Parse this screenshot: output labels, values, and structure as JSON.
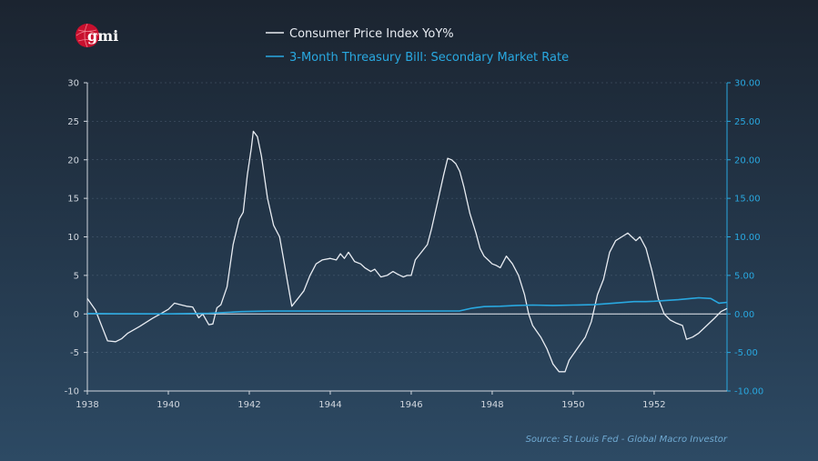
{
  "brand": {
    "logo_text": "gmi"
  },
  "source_note": "Source: St Louis Fed - Global Macro Investor",
  "colors": {
    "cpi": "#e8ecf2",
    "tbill": "#29a8e0",
    "left_axis": "#d0d6de",
    "right_axis": "#29a8e0",
    "logo": "#c8102e"
  },
  "chart_data": {
    "type": "line",
    "xlim": [
      1938,
      1953.8
    ],
    "ylim_left": [
      -10,
      30
    ],
    "ylim_right": [
      -10,
      30
    ],
    "x_ticks": [
      "1938",
      "1940",
      "1942",
      "1944",
      "1946",
      "1948",
      "1950",
      "1952"
    ],
    "y_ticks_left": [
      "30",
      "25",
      "20",
      "15",
      "10",
      "5",
      "0",
      "-5",
      "-10"
    ],
    "y_ticks_right": [
      "30.00",
      "25.00",
      "20.00",
      "15.00",
      "10.00",
      "5.00",
      "0.00",
      "-5.00",
      "-10.00"
    ],
    "grid": true,
    "legend_position": "top-center",
    "series": [
      {
        "name": "Consumer Price Index YoY%",
        "axis": "left",
        "points": [
          [
            1938.0,
            2.0
          ],
          [
            1938.2,
            0.5
          ],
          [
            1938.35,
            -1.5
          ],
          [
            1938.5,
            -3.5
          ],
          [
            1938.7,
            -3.6
          ],
          [
            1938.85,
            -3.2
          ],
          [
            1939.0,
            -2.5
          ],
          [
            1939.3,
            -1.6
          ],
          [
            1939.6,
            -0.6
          ],
          [
            1939.8,
            0.0
          ],
          [
            1940.0,
            0.6
          ],
          [
            1940.15,
            1.4
          ],
          [
            1940.3,
            1.2
          ],
          [
            1940.45,
            1.0
          ],
          [
            1940.6,
            0.9
          ],
          [
            1940.75,
            -0.5
          ],
          [
            1940.85,
            0.0
          ],
          [
            1941.0,
            -1.4
          ],
          [
            1941.1,
            -1.3
          ],
          [
            1941.2,
            0.8
          ],
          [
            1941.3,
            1.2
          ],
          [
            1941.45,
            3.5
          ],
          [
            1941.6,
            9.0
          ],
          [
            1941.75,
            12.3
          ],
          [
            1941.85,
            13.2
          ],
          [
            1941.95,
            18.0
          ],
          [
            1942.05,
            21.5
          ],
          [
            1942.1,
            23.7
          ],
          [
            1942.2,
            23.0
          ],
          [
            1942.3,
            20.5
          ],
          [
            1942.45,
            15.0
          ],
          [
            1942.6,
            11.5
          ],
          [
            1942.75,
            10.0
          ],
          [
            1942.85,
            7.0
          ],
          [
            1942.95,
            4.0
          ],
          [
            1943.05,
            1.0
          ],
          [
            1943.2,
            2.0
          ],
          [
            1943.35,
            3.0
          ],
          [
            1943.5,
            5.0
          ],
          [
            1943.65,
            6.5
          ],
          [
            1943.8,
            7.0
          ],
          [
            1944.0,
            7.2
          ],
          [
            1944.15,
            7.0
          ],
          [
            1944.25,
            7.8
          ],
          [
            1944.35,
            7.2
          ],
          [
            1944.45,
            8.0
          ],
          [
            1944.6,
            6.8
          ],
          [
            1944.75,
            6.5
          ],
          [
            1944.85,
            6.0
          ],
          [
            1945.0,
            5.5
          ],
          [
            1945.1,
            5.8
          ],
          [
            1945.25,
            4.8
          ],
          [
            1945.4,
            5.0
          ],
          [
            1945.55,
            5.5
          ],
          [
            1945.65,
            5.2
          ],
          [
            1945.8,
            4.8
          ],
          [
            1945.9,
            5.0
          ],
          [
            1946.0,
            5.0
          ],
          [
            1946.1,
            7.0
          ],
          [
            1946.25,
            8.0
          ],
          [
            1946.4,
            9.0
          ],
          [
            1946.5,
            11.0
          ],
          [
            1946.65,
            14.5
          ],
          [
            1946.8,
            18.0
          ],
          [
            1946.9,
            20.2
          ],
          [
            1947.0,
            20.0
          ],
          [
            1947.1,
            19.5
          ],
          [
            1947.2,
            18.5
          ],
          [
            1947.3,
            16.5
          ],
          [
            1947.45,
            13.0
          ],
          [
            1947.6,
            10.5
          ],
          [
            1947.7,
            8.5
          ],
          [
            1947.8,
            7.5
          ],
          [
            1947.9,
            7.0
          ],
          [
            1948.0,
            6.5
          ],
          [
            1948.1,
            6.3
          ],
          [
            1948.2,
            6.0
          ],
          [
            1948.35,
            7.5
          ],
          [
            1948.5,
            6.5
          ],
          [
            1948.65,
            5.0
          ],
          [
            1948.8,
            2.5
          ],
          [
            1948.9,
            0.0
          ],
          [
            1949.0,
            -1.5
          ],
          [
            1949.2,
            -3.0
          ],
          [
            1949.35,
            -4.5
          ],
          [
            1949.5,
            -6.5
          ],
          [
            1949.65,
            -7.5
          ],
          [
            1949.8,
            -7.5
          ],
          [
            1949.9,
            -6.0
          ],
          [
            1950.1,
            -4.5
          ],
          [
            1950.3,
            -3.0
          ],
          [
            1950.45,
            -1.0
          ],
          [
            1950.6,
            2.5
          ],
          [
            1950.75,
            4.5
          ],
          [
            1950.9,
            8.0
          ],
          [
            1951.05,
            9.5
          ],
          [
            1951.2,
            10.0
          ],
          [
            1951.35,
            10.5
          ],
          [
            1951.45,
            10.0
          ],
          [
            1951.55,
            9.5
          ],
          [
            1951.65,
            10.0
          ],
          [
            1951.8,
            8.5
          ],
          [
            1951.95,
            5.5
          ],
          [
            1952.1,
            2.0
          ],
          [
            1952.25,
            0.0
          ],
          [
            1952.4,
            -0.8
          ],
          [
            1952.55,
            -1.2
          ],
          [
            1952.7,
            -1.5
          ],
          [
            1952.8,
            -3.3
          ],
          [
            1952.95,
            -3.0
          ],
          [
            1953.1,
            -2.5
          ],
          [
            1953.3,
            -1.5
          ],
          [
            1953.5,
            -0.5
          ],
          [
            1953.65,
            0.3
          ],
          [
            1953.8,
            0.7
          ]
        ]
      },
      {
        "name": "3-Month Threasury Bill: Secondary Market Rate",
        "axis": "right",
        "points": [
          [
            1938.0,
            0.05
          ],
          [
            1939.0,
            0.02
          ],
          [
            1940.0,
            0.01
          ],
          [
            1941.0,
            0.08
          ],
          [
            1941.8,
            0.3
          ],
          [
            1942.5,
            0.37
          ],
          [
            1944.0,
            0.375
          ],
          [
            1946.0,
            0.375
          ],
          [
            1947.2,
            0.4
          ],
          [
            1947.5,
            0.75
          ],
          [
            1947.8,
            0.95
          ],
          [
            1948.2,
            1.0
          ],
          [
            1948.6,
            1.1
          ],
          [
            1949.0,
            1.15
          ],
          [
            1949.5,
            1.1
          ],
          [
            1950.0,
            1.15
          ],
          [
            1950.5,
            1.2
          ],
          [
            1951.0,
            1.4
          ],
          [
            1951.5,
            1.6
          ],
          [
            1951.8,
            1.6
          ],
          [
            1952.0,
            1.65
          ],
          [
            1952.3,
            1.75
          ],
          [
            1952.6,
            1.85
          ],
          [
            1952.9,
            2.0
          ],
          [
            1953.1,
            2.1
          ],
          [
            1953.4,
            2.0
          ],
          [
            1953.6,
            1.4
          ],
          [
            1953.8,
            1.5
          ]
        ]
      }
    ]
  }
}
